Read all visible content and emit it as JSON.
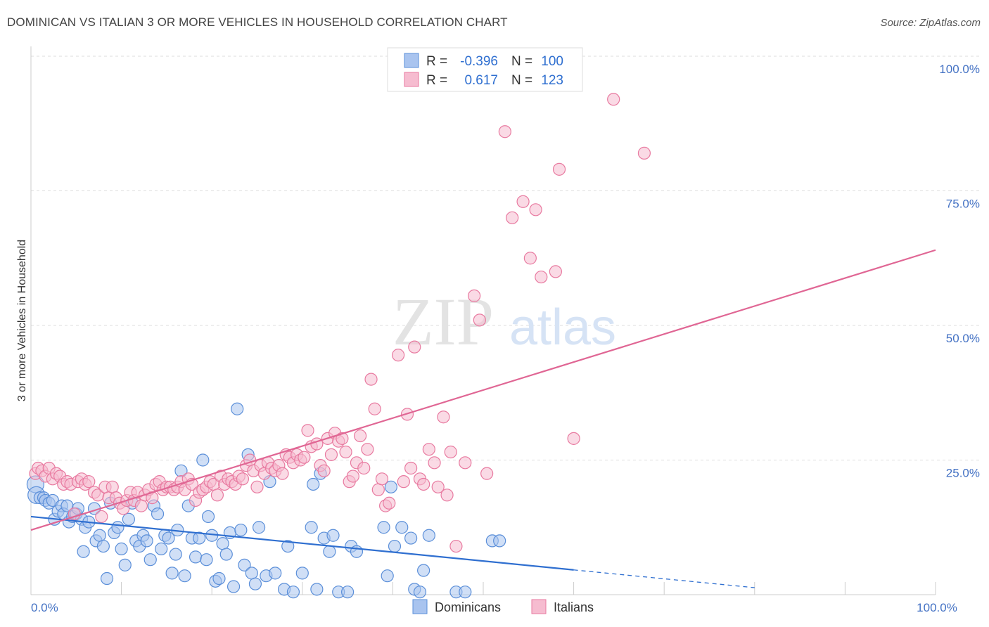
{
  "title": "DOMINICAN VS ITALIAN 3 OR MORE VEHICLES IN HOUSEHOLD CORRELATION CHART",
  "source": "Source: ZipAtlas.com",
  "watermark": {
    "zip": "ZIP",
    "atlas": "atlas"
  },
  "legend": {
    "rows": [
      {
        "r_label": "R =",
        "r_value": "-0.396",
        "n_label": "N =",
        "n_value": "100",
        "color": "#a9c4ef",
        "stroke": "#5b8fd9"
      },
      {
        "r_label": "R =",
        "r_value": "0.617",
        "n_label": "N =",
        "n_value": "123",
        "color": "#f6bcd0",
        "stroke": "#e87aa0"
      }
    ]
  },
  "bottom_legend": [
    {
      "label": "Dominicans",
      "color": "#a9c4ef",
      "stroke": "#5b8fd9"
    },
    {
      "label": "Italians",
      "color": "#f6bcd0",
      "stroke": "#e87aa0"
    }
  ],
  "colors": {
    "blue_line": "#2f6fd0",
    "pink_line": "#e06694",
    "grid": "#dddddd",
    "tick_text": "#4472c4"
  },
  "chart_data": {
    "type": "scatter",
    "xlabel": "",
    "ylabel": "3 or more Vehicles in Household",
    "xlim": [
      0,
      100
    ],
    "ylim": [
      0,
      100
    ],
    "x_tick_labels": [
      {
        "value": 0,
        "label": "0.0%"
      },
      {
        "value": 100,
        "label": "100.0%"
      }
    ],
    "y_tick_labels": [
      {
        "value": 25,
        "label": "25.0%"
      },
      {
        "value": 50,
        "label": "50.0%"
      },
      {
        "value": 75,
        "label": "75.0%"
      },
      {
        "value": 100,
        "label": "100.0%"
      }
    ],
    "grid": true,
    "legend_position": "top-center",
    "series": [
      {
        "name": "Dominicans",
        "color": "#a9c4ef",
        "stroke": "#5b8fd9",
        "trend": {
          "x": [
            0,
            100
          ],
          "y": [
            14.5,
            -2.0
          ],
          "solid_until": 60
        },
        "points": [
          [
            0.5,
            20.5
          ],
          [
            0.6,
            18.5
          ],
          [
            1.0,
            18.0
          ],
          [
            1.4,
            18.0
          ],
          [
            1.6,
            17.5
          ],
          [
            2.0,
            17.0
          ],
          [
            2.4,
            17.5
          ],
          [
            2.6,
            14.0
          ],
          [
            3.0,
            15.5
          ],
          [
            3.4,
            16.5
          ],
          [
            3.6,
            15.0
          ],
          [
            4.0,
            16.5
          ],
          [
            4.2,
            13.5
          ],
          [
            4.6,
            14.5
          ],
          [
            5.0,
            15.0
          ],
          [
            5.2,
            16.0
          ],
          [
            5.6,
            14.0
          ],
          [
            5.8,
            8.0
          ],
          [
            6.0,
            12.5
          ],
          [
            6.4,
            13.5
          ],
          [
            7.0,
            16.0
          ],
          [
            7.2,
            10.0
          ],
          [
            7.6,
            11.0
          ],
          [
            8.0,
            9.0
          ],
          [
            8.4,
            3.0
          ],
          [
            8.8,
            17.0
          ],
          [
            9.2,
            11.5
          ],
          [
            9.6,
            12.5
          ],
          [
            10.0,
            8.5
          ],
          [
            10.4,
            5.5
          ],
          [
            10.8,
            14.0
          ],
          [
            11.2,
            17.0
          ],
          [
            11.6,
            10.0
          ],
          [
            12.0,
            9.0
          ],
          [
            12.4,
            11.0
          ],
          [
            12.8,
            10.0
          ],
          [
            13.2,
            6.5
          ],
          [
            13.6,
            16.5
          ],
          [
            14.0,
            15.0
          ],
          [
            14.4,
            8.5
          ],
          [
            14.8,
            11.0
          ],
          [
            15.2,
            10.5
          ],
          [
            15.6,
            4.0
          ],
          [
            16.0,
            7.5
          ],
          [
            16.2,
            12.0
          ],
          [
            16.6,
            23.0
          ],
          [
            17.0,
            3.5
          ],
          [
            17.4,
            16.5
          ],
          [
            17.8,
            10.5
          ],
          [
            18.2,
            7.0
          ],
          [
            18.6,
            10.5
          ],
          [
            19.0,
            25.0
          ],
          [
            19.4,
            6.5
          ],
          [
            19.6,
            14.5
          ],
          [
            20.0,
            11.0
          ],
          [
            20.4,
            2.5
          ],
          [
            20.8,
            3.0
          ],
          [
            21.2,
            9.5
          ],
          [
            21.6,
            7.5
          ],
          [
            22.0,
            11.5
          ],
          [
            22.4,
            1.5
          ],
          [
            22.8,
            34.5
          ],
          [
            23.2,
            12.0
          ],
          [
            23.6,
            5.5
          ],
          [
            24.0,
            26.0
          ],
          [
            24.4,
            4.0
          ],
          [
            24.8,
            2.0
          ],
          [
            25.2,
            12.5
          ],
          [
            26.0,
            3.5
          ],
          [
            26.4,
            21.0
          ],
          [
            27.0,
            4.0
          ],
          [
            28.0,
            1.0
          ],
          [
            28.4,
            9.0
          ],
          [
            29.0,
            0.5
          ],
          [
            30.0,
            4.0
          ],
          [
            31.0,
            12.5
          ],
          [
            31.2,
            20.5
          ],
          [
            31.6,
            1.0
          ],
          [
            32.0,
            22.5
          ],
          [
            32.4,
            10.5
          ],
          [
            33.0,
            8.0
          ],
          [
            33.4,
            11.0
          ],
          [
            34.0,
            0.5
          ],
          [
            35.0,
            0.5
          ],
          [
            35.4,
            9.0
          ],
          [
            36.0,
            8.0
          ],
          [
            39.0,
            12.5
          ],
          [
            39.4,
            3.5
          ],
          [
            39.8,
            20.0
          ],
          [
            40.2,
            9.0
          ],
          [
            41.0,
            12.5
          ],
          [
            42.0,
            10.5
          ],
          [
            42.4,
            1.0
          ],
          [
            43.0,
            0.5
          ],
          [
            43.4,
            4.5
          ],
          [
            44.0,
            11.0
          ],
          [
            47.0,
            0.5
          ],
          [
            48.0,
            0.5
          ],
          [
            51.0,
            10.0
          ],
          [
            51.8,
            10.0
          ]
        ]
      },
      {
        "name": "Italians",
        "color": "#f6bcd0",
        "stroke": "#e87aa0",
        "trend": {
          "x": [
            0,
            100
          ],
          "y": [
            12.0,
            64.0
          ]
        },
        "points": [
          [
            0.5,
            22.5
          ],
          [
            0.8,
            23.5
          ],
          [
            1.2,
            23.0
          ],
          [
            1.6,
            22.0
          ],
          [
            2.0,
            23.5
          ],
          [
            2.4,
            21.5
          ],
          [
            2.8,
            22.5
          ],
          [
            3.2,
            22.0
          ],
          [
            3.6,
            20.5
          ],
          [
            4.0,
            21.0
          ],
          [
            4.4,
            20.5
          ],
          [
            4.8,
            15.0
          ],
          [
            5.2,
            21.0
          ],
          [
            5.6,
            21.5
          ],
          [
            6.0,
            20.5
          ],
          [
            6.4,
            21.0
          ],
          [
            7.0,
            19.0
          ],
          [
            7.4,
            18.5
          ],
          [
            7.8,
            14.5
          ],
          [
            8.2,
            20.0
          ],
          [
            8.6,
            18.0
          ],
          [
            9.0,
            20.0
          ],
          [
            9.4,
            18.0
          ],
          [
            9.8,
            17.0
          ],
          [
            10.2,
            16.0
          ],
          [
            10.6,
            17.5
          ],
          [
            11.0,
            19.0
          ],
          [
            11.4,
            17.5
          ],
          [
            11.8,
            19.0
          ],
          [
            12.2,
            16.5
          ],
          [
            12.6,
            18.5
          ],
          [
            13.0,
            19.5
          ],
          [
            13.4,
            18.0
          ],
          [
            13.8,
            20.5
          ],
          [
            14.2,
            21.0
          ],
          [
            14.6,
            19.5
          ],
          [
            15.0,
            20.0
          ],
          [
            15.4,
            20.0
          ],
          [
            15.8,
            19.5
          ],
          [
            16.2,
            20.0
          ],
          [
            16.6,
            21.0
          ],
          [
            17.0,
            19.5
          ],
          [
            17.4,
            21.5
          ],
          [
            17.8,
            20.5
          ],
          [
            18.2,
            17.5
          ],
          [
            18.6,
            19.0
          ],
          [
            19.0,
            19.5
          ],
          [
            19.4,
            20.0
          ],
          [
            19.8,
            21.0
          ],
          [
            20.2,
            20.5
          ],
          [
            20.6,
            18.5
          ],
          [
            21.0,
            22.0
          ],
          [
            21.4,
            20.5
          ],
          [
            21.8,
            21.5
          ],
          [
            22.2,
            21.0
          ],
          [
            22.6,
            20.5
          ],
          [
            23.0,
            22.0
          ],
          [
            23.4,
            21.5
          ],
          [
            23.8,
            24.0
          ],
          [
            24.2,
            25.0
          ],
          [
            24.6,
            23.0
          ],
          [
            25.0,
            20.0
          ],
          [
            25.4,
            24.0
          ],
          [
            25.8,
            22.5
          ],
          [
            26.2,
            24.5
          ],
          [
            26.6,
            23.5
          ],
          [
            27.0,
            23.0
          ],
          [
            27.4,
            24.0
          ],
          [
            27.8,
            22.5
          ],
          [
            28.2,
            26.0
          ],
          [
            28.6,
            25.5
          ],
          [
            29.0,
            24.5
          ],
          [
            29.4,
            26.0
          ],
          [
            29.8,
            25.0
          ],
          [
            30.2,
            25.5
          ],
          [
            30.6,
            30.5
          ],
          [
            31.0,
            27.5
          ],
          [
            31.6,
            28.0
          ],
          [
            32.0,
            24.0
          ],
          [
            32.4,
            23.0
          ],
          [
            32.8,
            29.0
          ],
          [
            33.2,
            26.0
          ],
          [
            33.6,
            30.0
          ],
          [
            34.0,
            28.5
          ],
          [
            34.4,
            29.0
          ],
          [
            34.8,
            26.5
          ],
          [
            35.2,
            21.0
          ],
          [
            35.6,
            22.0
          ],
          [
            36.0,
            24.5
          ],
          [
            36.4,
            29.5
          ],
          [
            36.8,
            23.5
          ],
          [
            37.2,
            27.0
          ],
          [
            37.6,
            40.0
          ],
          [
            38.0,
            34.5
          ],
          [
            38.4,
            19.5
          ],
          [
            38.8,
            21.5
          ],
          [
            39.2,
            16.5
          ],
          [
            39.6,
            17.0
          ],
          [
            40.6,
            44.5
          ],
          [
            41.2,
            21.0
          ],
          [
            41.6,
            33.5
          ],
          [
            42.0,
            23.5
          ],
          [
            42.4,
            46.0
          ],
          [
            43.0,
            21.5
          ],
          [
            43.4,
            20.5
          ],
          [
            44.0,
            27.0
          ],
          [
            44.6,
            24.5
          ],
          [
            45.0,
            20.0
          ],
          [
            45.6,
            33.0
          ],
          [
            46.0,
            18.5
          ],
          [
            46.4,
            26.5
          ],
          [
            47.0,
            9.0
          ],
          [
            48.0,
            24.5
          ],
          [
            49.0,
            55.5
          ],
          [
            49.6,
            51.0
          ],
          [
            50.4,
            22.5
          ],
          [
            52.4,
            86.0
          ],
          [
            53.2,
            70.0
          ],
          [
            54.4,
            73.0
          ],
          [
            55.2,
            62.5
          ],
          [
            55.8,
            71.5
          ],
          [
            56.4,
            59.0
          ],
          [
            58.0,
            60.0
          ],
          [
            58.4,
            79.0
          ],
          [
            60.0,
            29.0
          ],
          [
            64.4,
            92.0
          ],
          [
            67.8,
            82.0
          ]
        ]
      }
    ]
  }
}
